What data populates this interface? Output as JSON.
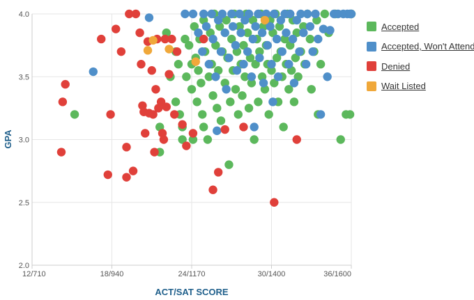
{
  "chart_data": {
    "type": "scatter",
    "title": "",
    "xlabel": "ACT/SAT SCORE",
    "ylabel": "GPA",
    "xlim": [
      12,
      36
    ],
    "ylim": [
      2.0,
      4.0
    ],
    "x_ticks": [
      {
        "value": 12,
        "label": "12/710"
      },
      {
        "value": 18,
        "label": "18/940"
      },
      {
        "value": 24,
        "label": "24/1170"
      },
      {
        "value": 30,
        "label": "30/1400"
      },
      {
        "value": 36,
        "label": "36/1600"
      }
    ],
    "y_ticks": [
      {
        "value": 2.0,
        "label": "2.0"
      },
      {
        "value": 2.5,
        "label": "2.5"
      },
      {
        "value": 3.0,
        "label": "3.0"
      },
      {
        "value": 3.5,
        "label": "3.5"
      },
      {
        "value": 4.0,
        "label": "4.0"
      }
    ],
    "grid": true,
    "legend_position": "right",
    "series": [
      {
        "name": "Accepted",
        "color": "#5cb85c",
        "points": [
          [
            15.2,
            3.2
          ],
          [
            21.6,
            2.9
          ],
          [
            21.6,
            3.1
          ],
          [
            22.1,
            3.85
          ],
          [
            22.4,
            3.5
          ],
          [
            22.8,
            3.7
          ],
          [
            22.8,
            3.3
          ],
          [
            23.0,
            3.6
          ],
          [
            23.1,
            3.2
          ],
          [
            23.3,
            3.0
          ],
          [
            23.3,
            3.1
          ],
          [
            23.5,
            3.8
          ],
          [
            23.6,
            3.5
          ],
          [
            23.8,
            3.75
          ],
          [
            24.0,
            3.6
          ],
          [
            24.0,
            3.4
          ],
          [
            24.1,
            3.0
          ],
          [
            24.2,
            3.9
          ],
          [
            24.3,
            3.65
          ],
          [
            24.4,
            3.3
          ],
          [
            24.5,
            3.55
          ],
          [
            24.6,
            3.8
          ],
          [
            24.7,
            3.45
          ],
          [
            24.8,
            3.2
          ],
          [
            24.9,
            3.95
          ],
          [
            24.9,
            3.1
          ],
          [
            25.0,
            3.7
          ],
          [
            25.2,
            3.0
          ],
          [
            25.3,
            3.5
          ],
          [
            25.4,
            3.85
          ],
          [
            25.5,
            3.6
          ],
          [
            25.6,
            3.35
          ],
          [
            25.7,
            4.0
          ],
          [
            25.8,
            3.75
          ],
          [
            25.9,
            3.25
          ],
          [
            26.0,
            3.55
          ],
          [
            26.1,
            3.9
          ],
          [
            26.2,
            3.15
          ],
          [
            26.3,
            3.7
          ],
          [
            26.5,
            3.45
          ],
          [
            26.6,
            3.95
          ],
          [
            26.7,
            3.65
          ],
          [
            26.8,
            2.8
          ],
          [
            26.9,
            3.3
          ],
          [
            27.0,
            3.8
          ],
          [
            27.1,
            3.55
          ],
          [
            27.2,
            4.0
          ],
          [
            27.3,
            3.4
          ],
          [
            27.4,
            3.7
          ],
          [
            27.5,
            3.2
          ],
          [
            27.6,
            3.9
          ],
          [
            27.7,
            3.6
          ],
          [
            27.8,
            3.35
          ],
          [
            27.9,
            3.75
          ],
          [
            28.0,
            3.5
          ],
          [
            28.1,
            4.0
          ],
          [
            28.2,
            3.85
          ],
          [
            28.3,
            3.25
          ],
          [
            28.4,
            3.65
          ],
          [
            28.5,
            3.45
          ],
          [
            28.6,
            3.95
          ],
          [
            28.7,
            3.0
          ],
          [
            28.8,
            3.6
          ],
          [
            28.9,
            3.8
          ],
          [
            29.0,
            3.3
          ],
          [
            29.1,
            3.7
          ],
          [
            29.2,
            4.0
          ],
          [
            29.3,
            3.5
          ],
          [
            29.4,
            3.9
          ],
          [
            29.5,
            3.4
          ],
          [
            29.6,
            3.75
          ],
          [
            29.7,
            3.6
          ],
          [
            29.8,
            3.2
          ],
          [
            29.9,
            3.95
          ],
          [
            30.0,
            3.55
          ],
          [
            30.1,
            3.85
          ],
          [
            30.2,
            3.45
          ],
          [
            30.3,
            4.0
          ],
          [
            30.4,
            3.65
          ],
          [
            30.5,
            3.3
          ],
          [
            30.6,
            3.9
          ],
          [
            30.7,
            3.7
          ],
          [
            30.8,
            3.5
          ],
          [
            30.9,
            3.1
          ],
          [
            31.0,
            3.8
          ],
          [
            31.1,
            3.6
          ],
          [
            31.2,
            4.0
          ],
          [
            31.3,
            3.4
          ],
          [
            31.4,
            3.75
          ],
          [
            31.5,
            3.55
          ],
          [
            31.6,
            3.95
          ],
          [
            31.7,
            3.3
          ],
          [
            31.8,
            3.65
          ],
          [
            31.9,
            3.85
          ],
          [
            32.0,
            3.5
          ],
          [
            32.2,
            3.7
          ],
          [
            32.4,
            3.9
          ],
          [
            32.5,
            3.6
          ],
          [
            32.7,
            4.0
          ],
          [
            32.9,
            3.8
          ],
          [
            33.0,
            3.4
          ],
          [
            33.2,
            3.7
          ],
          [
            33.4,
            3.95
          ],
          [
            33.5,
            3.2
          ],
          [
            33.7,
            3.6
          ],
          [
            34.0,
            4.0
          ],
          [
            34.3,
            3.85
          ],
          [
            34.8,
            4.0
          ],
          [
            35.2,
            3.0
          ],
          [
            35.6,
            3.2
          ],
          [
            35.9,
            3.2
          ],
          [
            36.0,
            4.0
          ]
        ]
      },
      {
        "name": "Accepted, Won't Attend",
        "color": "#4f8fc9",
        "points": [
          [
            16.6,
            3.54
          ],
          [
            20.8,
            3.97
          ],
          [
            23.5,
            4.0
          ],
          [
            24.1,
            4.0
          ],
          [
            24.5,
            3.85
          ],
          [
            24.8,
            3.7
          ],
          [
            24.9,
            4.0
          ],
          [
            25.1,
            3.9
          ],
          [
            25.3,
            3.6
          ],
          [
            25.5,
            4.0
          ],
          [
            25.6,
            3.8
          ],
          [
            25.8,
            3.5
          ],
          [
            25.9,
            3.07
          ],
          [
            26.0,
            3.95
          ],
          [
            26.2,
            3.7
          ],
          [
            26.3,
            4.0
          ],
          [
            26.5,
            3.85
          ],
          [
            26.6,
            3.4
          ],
          [
            26.8,
            3.65
          ],
          [
            27.0,
            4.0
          ],
          [
            27.1,
            3.9
          ],
          [
            27.3,
            3.75
          ],
          [
            27.4,
            3.55
          ],
          [
            27.6,
            4.0
          ],
          [
            27.7,
            3.85
          ],
          [
            27.9,
            3.6
          ],
          [
            28.0,
            3.95
          ],
          [
            28.2,
            3.7
          ],
          [
            28.3,
            4.0
          ],
          [
            28.5,
            3.5
          ],
          [
            28.6,
            3.8
          ],
          [
            28.7,
            3.1
          ],
          [
            28.8,
            3.9
          ],
          [
            29.0,
            4.0
          ],
          [
            29.1,
            3.65
          ],
          [
            29.3,
            3.85
          ],
          [
            29.4,
            3.45
          ],
          [
            29.6,
            4.0
          ],
          [
            29.7,
            3.75
          ],
          [
            29.9,
            3.9
          ],
          [
            30.0,
            3.6
          ],
          [
            30.1,
            3.3
          ],
          [
            30.2,
            4.0
          ],
          [
            30.4,
            3.8
          ],
          [
            30.5,
            3.5
          ],
          [
            30.7,
            3.95
          ],
          [
            30.8,
            3.7
          ],
          [
            31.0,
            4.0
          ],
          [
            31.1,
            3.85
          ],
          [
            31.3,
            3.6
          ],
          [
            31.4,
            4.0
          ],
          [
            31.6,
            3.8
          ],
          [
            31.7,
            3.45
          ],
          [
            31.9,
            3.95
          ],
          [
            32.1,
            3.7
          ],
          [
            32.2,
            4.0
          ],
          [
            32.4,
            3.85
          ],
          [
            32.6,
            3.6
          ],
          [
            32.7,
            4.0
          ],
          [
            32.9,
            3.9
          ],
          [
            33.1,
            3.7
          ],
          [
            33.3,
            4.0
          ],
          [
            33.5,
            3.8
          ],
          [
            33.7,
            3.2
          ],
          [
            33.9,
            3.88
          ],
          [
            34.2,
            3.5
          ],
          [
            34.4,
            3.87
          ],
          [
            34.7,
            4.0
          ],
          [
            35.0,
            4.0
          ],
          [
            35.4,
            4.0
          ],
          [
            35.7,
            4.0
          ],
          [
            35.9,
            4.0
          ],
          [
            36.0,
            4.0
          ]
        ]
      },
      {
        "name": "Denied",
        "color": "#e0403a",
        "points": [
          [
            14.2,
            2.9
          ],
          [
            14.3,
            3.3
          ],
          [
            14.5,
            3.44
          ],
          [
            17.2,
            3.8
          ],
          [
            17.7,
            2.72
          ],
          [
            17.9,
            3.2
          ],
          [
            18.3,
            3.88
          ],
          [
            18.7,
            3.7
          ],
          [
            19.1,
            2.94
          ],
          [
            19.1,
            2.7
          ],
          [
            19.3,
            4.0
          ],
          [
            19.6,
            2.75
          ],
          [
            19.8,
            4.0
          ],
          [
            20.1,
            3.85
          ],
          [
            20.2,
            3.6
          ],
          [
            20.3,
            3.27
          ],
          [
            20.4,
            3.22
          ],
          [
            20.5,
            3.05
          ],
          [
            20.7,
            3.78
          ],
          [
            20.8,
            3.21
          ],
          [
            21.0,
            3.55
          ],
          [
            21.1,
            3.2
          ],
          [
            21.2,
            2.9
          ],
          [
            21.3,
            3.4
          ],
          [
            21.4,
            3.8
          ],
          [
            21.5,
            3.25
          ],
          [
            21.7,
            3.3
          ],
          [
            21.8,
            3.05
          ],
          [
            21.9,
            3.0
          ],
          [
            22.0,
            3.8
          ],
          [
            22.1,
            3.26
          ],
          [
            22.3,
            3.52
          ],
          [
            22.5,
            3.8
          ],
          [
            22.7,
            3.2
          ],
          [
            22.9,
            3.7
          ],
          [
            23.3,
            3.12
          ],
          [
            23.6,
            2.95
          ],
          [
            24.1,
            3.05
          ],
          [
            24.9,
            3.8
          ],
          [
            25.6,
            2.6
          ],
          [
            26.0,
            2.74
          ],
          [
            26.5,
            3.08
          ],
          [
            27.9,
            3.1
          ],
          [
            30.2,
            2.5
          ],
          [
            31.9,
            3.0
          ]
        ]
      },
      {
        "name": "Wait Listed",
        "color": "#f0a83a",
        "points": [
          [
            21.1,
            3.79
          ],
          [
            20.7,
            3.71
          ],
          [
            22.3,
            3.72
          ],
          [
            24.3,
            3.62
          ],
          [
            29.5,
            3.95
          ]
        ]
      }
    ]
  }
}
